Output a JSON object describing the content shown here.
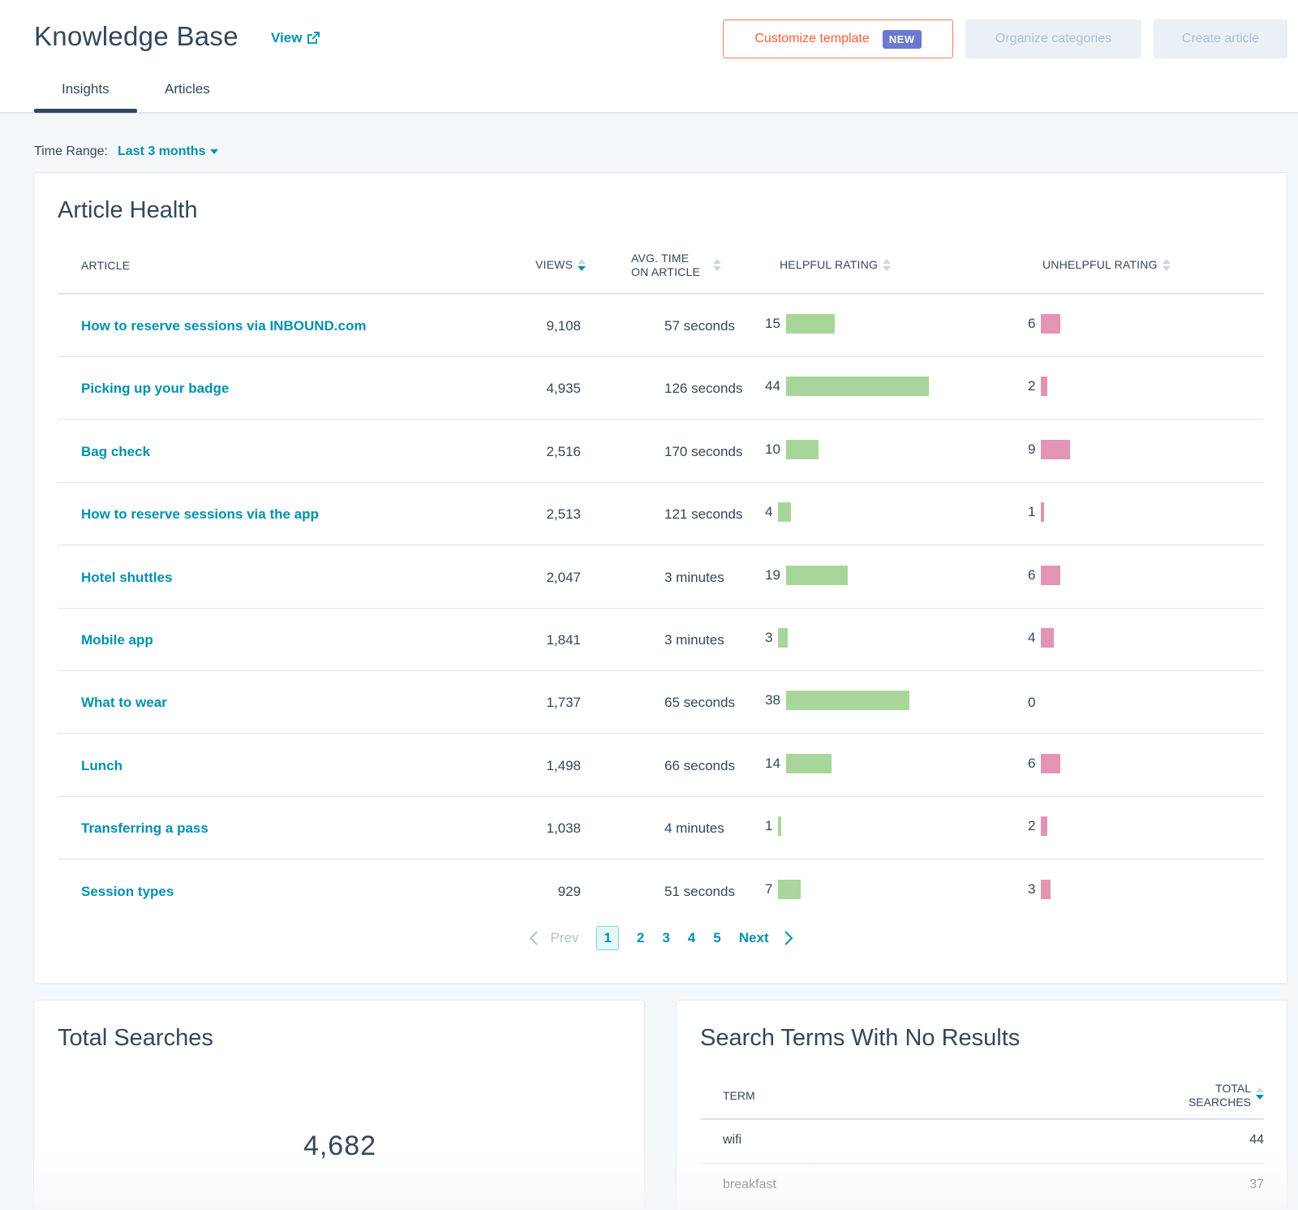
{
  "header": {
    "title": "Knowledge Base",
    "view_label": "View",
    "customize_label": "Customize template",
    "new_badge": "NEW",
    "organize_label": "Organize categories",
    "create_label": "Create article",
    "tabs": [
      {
        "label": "Insights",
        "active": true
      },
      {
        "label": "Articles",
        "active": false
      }
    ]
  },
  "time_range": {
    "label": "Time Range:",
    "value": "Last 3 months"
  },
  "article_health": {
    "title": "Article Health",
    "columns": {
      "article": "ARTICLE",
      "views": "VIEWS",
      "avg_time_1": "AVG. TIME",
      "avg_time_2": "ON ARTICLE",
      "helpful": "HELPFUL RATING",
      "unhelpful": "UNHELPFUL RATING"
    },
    "rows": [
      {
        "article": "How to reserve sessions via INBOUND.com",
        "views": "9,108",
        "time": "57 seconds",
        "helpful": 15,
        "unhelpful": 6
      },
      {
        "article": "Picking up your badge",
        "views": "4,935",
        "time": "126 seconds",
        "helpful": 44,
        "unhelpful": 2
      },
      {
        "article": "Bag check",
        "views": "2,516",
        "time": "170 seconds",
        "helpful": 10,
        "unhelpful": 9
      },
      {
        "article": "How to reserve sessions via the app",
        "views": "2,513",
        "time": "121 seconds",
        "helpful": 4,
        "unhelpful": 1
      },
      {
        "article": "Hotel shuttles",
        "views": "2,047",
        "time": "3 minutes",
        "helpful": 19,
        "unhelpful": 6
      },
      {
        "article": "Mobile app",
        "views": "1,841",
        "time": "3 minutes",
        "helpful": 3,
        "unhelpful": 4
      },
      {
        "article": "What to wear",
        "views": "1,737",
        "time": "65 seconds",
        "helpful": 38,
        "unhelpful": 0
      },
      {
        "article": "Lunch",
        "views": "1,498",
        "time": "66 seconds",
        "helpful": 14,
        "unhelpful": 6
      },
      {
        "article": "Transferring a pass",
        "views": "1,038",
        "time": "4 minutes",
        "helpful": 1,
        "unhelpful": 2
      },
      {
        "article": "Session types",
        "views": "929",
        "time": "51 seconds",
        "helpful": 7,
        "unhelpful": 3
      }
    ],
    "pagination": {
      "prev": "Prev",
      "next": "Next",
      "pages": [
        "1",
        "2",
        "3",
        "4",
        "5"
      ],
      "current": "1"
    }
  },
  "total_searches": {
    "title": "Total Searches",
    "value": "4,682"
  },
  "no_results": {
    "title": "Search Terms With No Results",
    "col_term": "TERM",
    "col_total_1": "TOTAL",
    "col_total_2": "SEARCHES",
    "rows": [
      {
        "term": "wifi",
        "count": "44"
      },
      {
        "term": "breakfast",
        "count": "37"
      }
    ]
  },
  "colors": {
    "accent": "#0091ae",
    "helpful_bar": "#a8d69a",
    "unhelpful_bar": "#e294b2",
    "customize": "#ff7a59",
    "new_badge": "#6a78d1"
  }
}
